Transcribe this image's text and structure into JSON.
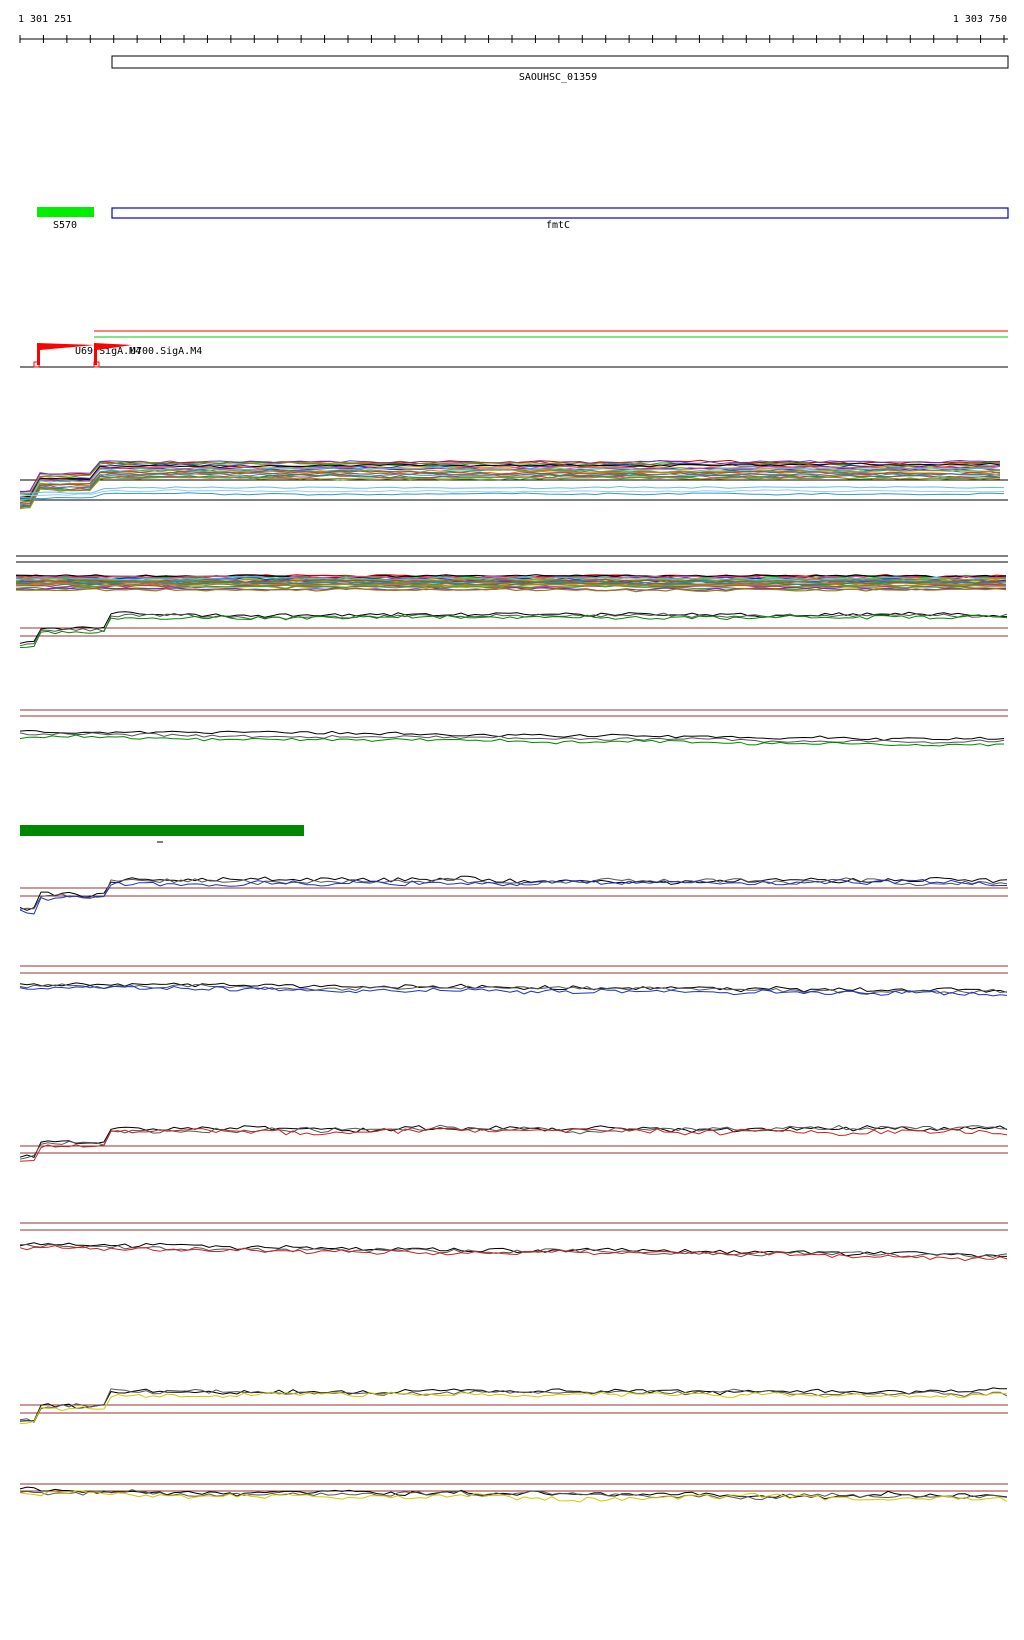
{
  "ruler": {
    "start_label": "1 301 251",
    "end_label": "1 303 750"
  },
  "genes": [
    {
      "label": "SAOUHSC_01359",
      "outline": "#000000"
    },
    {
      "label": "fmtC",
      "outline": "#0000cc"
    },
    {
      "label": "S570",
      "fill": "#00ee00"
    }
  ],
  "promoters": [
    {
      "label": "U69.SigA.M4"
    },
    {
      "label": "U700.SigA.M4"
    }
  ],
  "tracks": [
    {
      "name": "overlay-all-conditions"
    },
    {
      "name": "overlay-all-conditions-reverse"
    },
    {
      "name": "condition-green-forward",
      "colors": [
        "#000000",
        "#555555",
        "#008800"
      ]
    },
    {
      "name": "condition-green-reverse",
      "colors": [
        "#000000",
        "#555555",
        "#008800"
      ]
    },
    {
      "name": "condition-blue-forward",
      "colors": [
        "#000000",
        "#555555",
        "#1a33cc"
      ]
    },
    {
      "name": "condition-blue-reverse",
      "colors": [
        "#000000",
        "#555555",
        "#1a33cc"
      ]
    },
    {
      "name": "condition-red-forward",
      "colors": [
        "#000000",
        "#555555",
        "#cc2222"
      ]
    },
    {
      "name": "condition-red-reverse",
      "colors": [
        "#000000",
        "#555555",
        "#cc2222"
      ]
    },
    {
      "name": "condition-yellow-forward",
      "colors": [
        "#000000",
        "#555555",
        "#cccc00"
      ]
    },
    {
      "name": "condition-yellow-reverse",
      "colors": [
        "#000000",
        "#555555",
        "#cccc00"
      ]
    }
  ],
  "colors": {
    "threshold": "#993333",
    "feature_bar": "#008800",
    "promoter_arrow": "#ff0000",
    "transcript_red": "#ff0000",
    "transcript_green": "#00cc00"
  }
}
